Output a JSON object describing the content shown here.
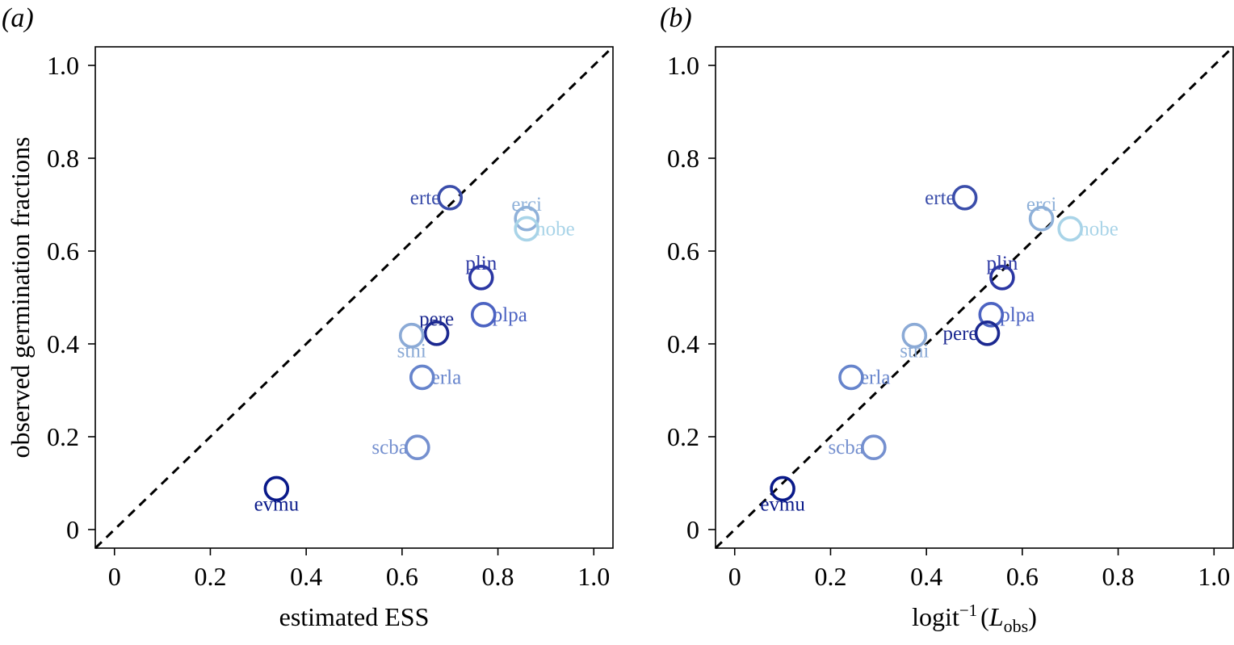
{
  "chart_data": [
    {
      "type": "scatter",
      "panel_label": "(a)",
      "xlabel": "estimated ESS",
      "ylabel": "observed germination fractions",
      "xlim": [
        -0.04,
        1.04
      ],
      "ylim": [
        -0.04,
        1.04
      ],
      "xticks": [
        "0",
        "0.2",
        "0.4",
        "0.6",
        "0.8",
        "1.0"
      ],
      "yticks": [
        "0",
        "0.2",
        "0.4",
        "0.6",
        "0.8",
        "1.0"
      ],
      "grid": false,
      "reference_line": "y = x (dashed)",
      "points": [
        {
          "label": "erte",
          "x": 0.7,
          "y": 0.715,
          "color": "#3A4DAA",
          "label_pos": "left"
        },
        {
          "label": "erci",
          "x": 0.86,
          "y": 0.67,
          "color": "#8FB1D9",
          "label_pos": "above"
        },
        {
          "label": "nobe",
          "x": 0.86,
          "y": 0.648,
          "color": "#A9D4E8",
          "label_pos": "right"
        },
        {
          "label": "plin",
          "x": 0.765,
          "y": 0.543,
          "color": "#2B37A3",
          "label_pos": "above"
        },
        {
          "label": "plpa",
          "x": 0.77,
          "y": 0.463,
          "color": "#4C63C2",
          "label_pos": "right"
        },
        {
          "label": "pere",
          "x": 0.672,
          "y": 0.423,
          "color": "#1B2890",
          "label_pos": "above"
        },
        {
          "label": "stni",
          "x": 0.62,
          "y": 0.418,
          "color": "#8BAAD6",
          "label_pos": "below"
        },
        {
          "label": "erla",
          "x": 0.642,
          "y": 0.328,
          "color": "#6684CC",
          "label_pos": "right"
        },
        {
          "label": "scba",
          "x": 0.632,
          "y": 0.177,
          "color": "#7590CF",
          "label_pos": "left"
        },
        {
          "label": "evmu",
          "x": 0.338,
          "y": 0.088,
          "color": "#0A1A8A",
          "label_pos": "below"
        }
      ]
    },
    {
      "type": "scatter",
      "panel_label": "(b)",
      "xlabel": "logit",
      "xlabel_sup": "−1",
      "xlabel_paren_open": "(",
      "xlabel_var": "L",
      "xlabel_sub": "obs",
      "xlabel_paren_close": ")",
      "ylabel": "",
      "xlim": [
        -0.04,
        1.04
      ],
      "ylim": [
        -0.04,
        1.04
      ],
      "xticks": [
        "0",
        "0.2",
        "0.4",
        "0.6",
        "0.8",
        "1.0"
      ],
      "yticks": [
        "0",
        "0.2",
        "0.4",
        "0.6",
        "0.8",
        "1.0"
      ],
      "grid": false,
      "reference_line": "y = x (dashed)",
      "points": [
        {
          "label": "erte",
          "x": 0.48,
          "y": 0.715,
          "color": "#3A4DAA",
          "label_pos": "left"
        },
        {
          "label": "erci",
          "x": 0.64,
          "y": 0.67,
          "color": "#8FB1D9",
          "label_pos": "above"
        },
        {
          "label": "nobe",
          "x": 0.7,
          "y": 0.648,
          "color": "#A9D4E8",
          "label_pos": "right"
        },
        {
          "label": "plin",
          "x": 0.558,
          "y": 0.543,
          "color": "#2B37A3",
          "label_pos": "above"
        },
        {
          "label": "plpa",
          "x": 0.535,
          "y": 0.463,
          "color": "#4C63C2",
          "label_pos": "right"
        },
        {
          "label": "pere",
          "x": 0.527,
          "y": 0.423,
          "color": "#1B2890",
          "label_pos": "left"
        },
        {
          "label": "stni",
          "x": 0.375,
          "y": 0.418,
          "color": "#8BAAD6",
          "label_pos": "below"
        },
        {
          "label": "erla",
          "x": 0.243,
          "y": 0.328,
          "color": "#6684CC",
          "label_pos": "right"
        },
        {
          "label": "scba",
          "x": 0.29,
          "y": 0.177,
          "color": "#7590CF",
          "label_pos": "left"
        },
        {
          "label": "evmu",
          "x": 0.1,
          "y": 0.088,
          "color": "#0A1A8A",
          "label_pos": "below"
        }
      ]
    }
  ]
}
